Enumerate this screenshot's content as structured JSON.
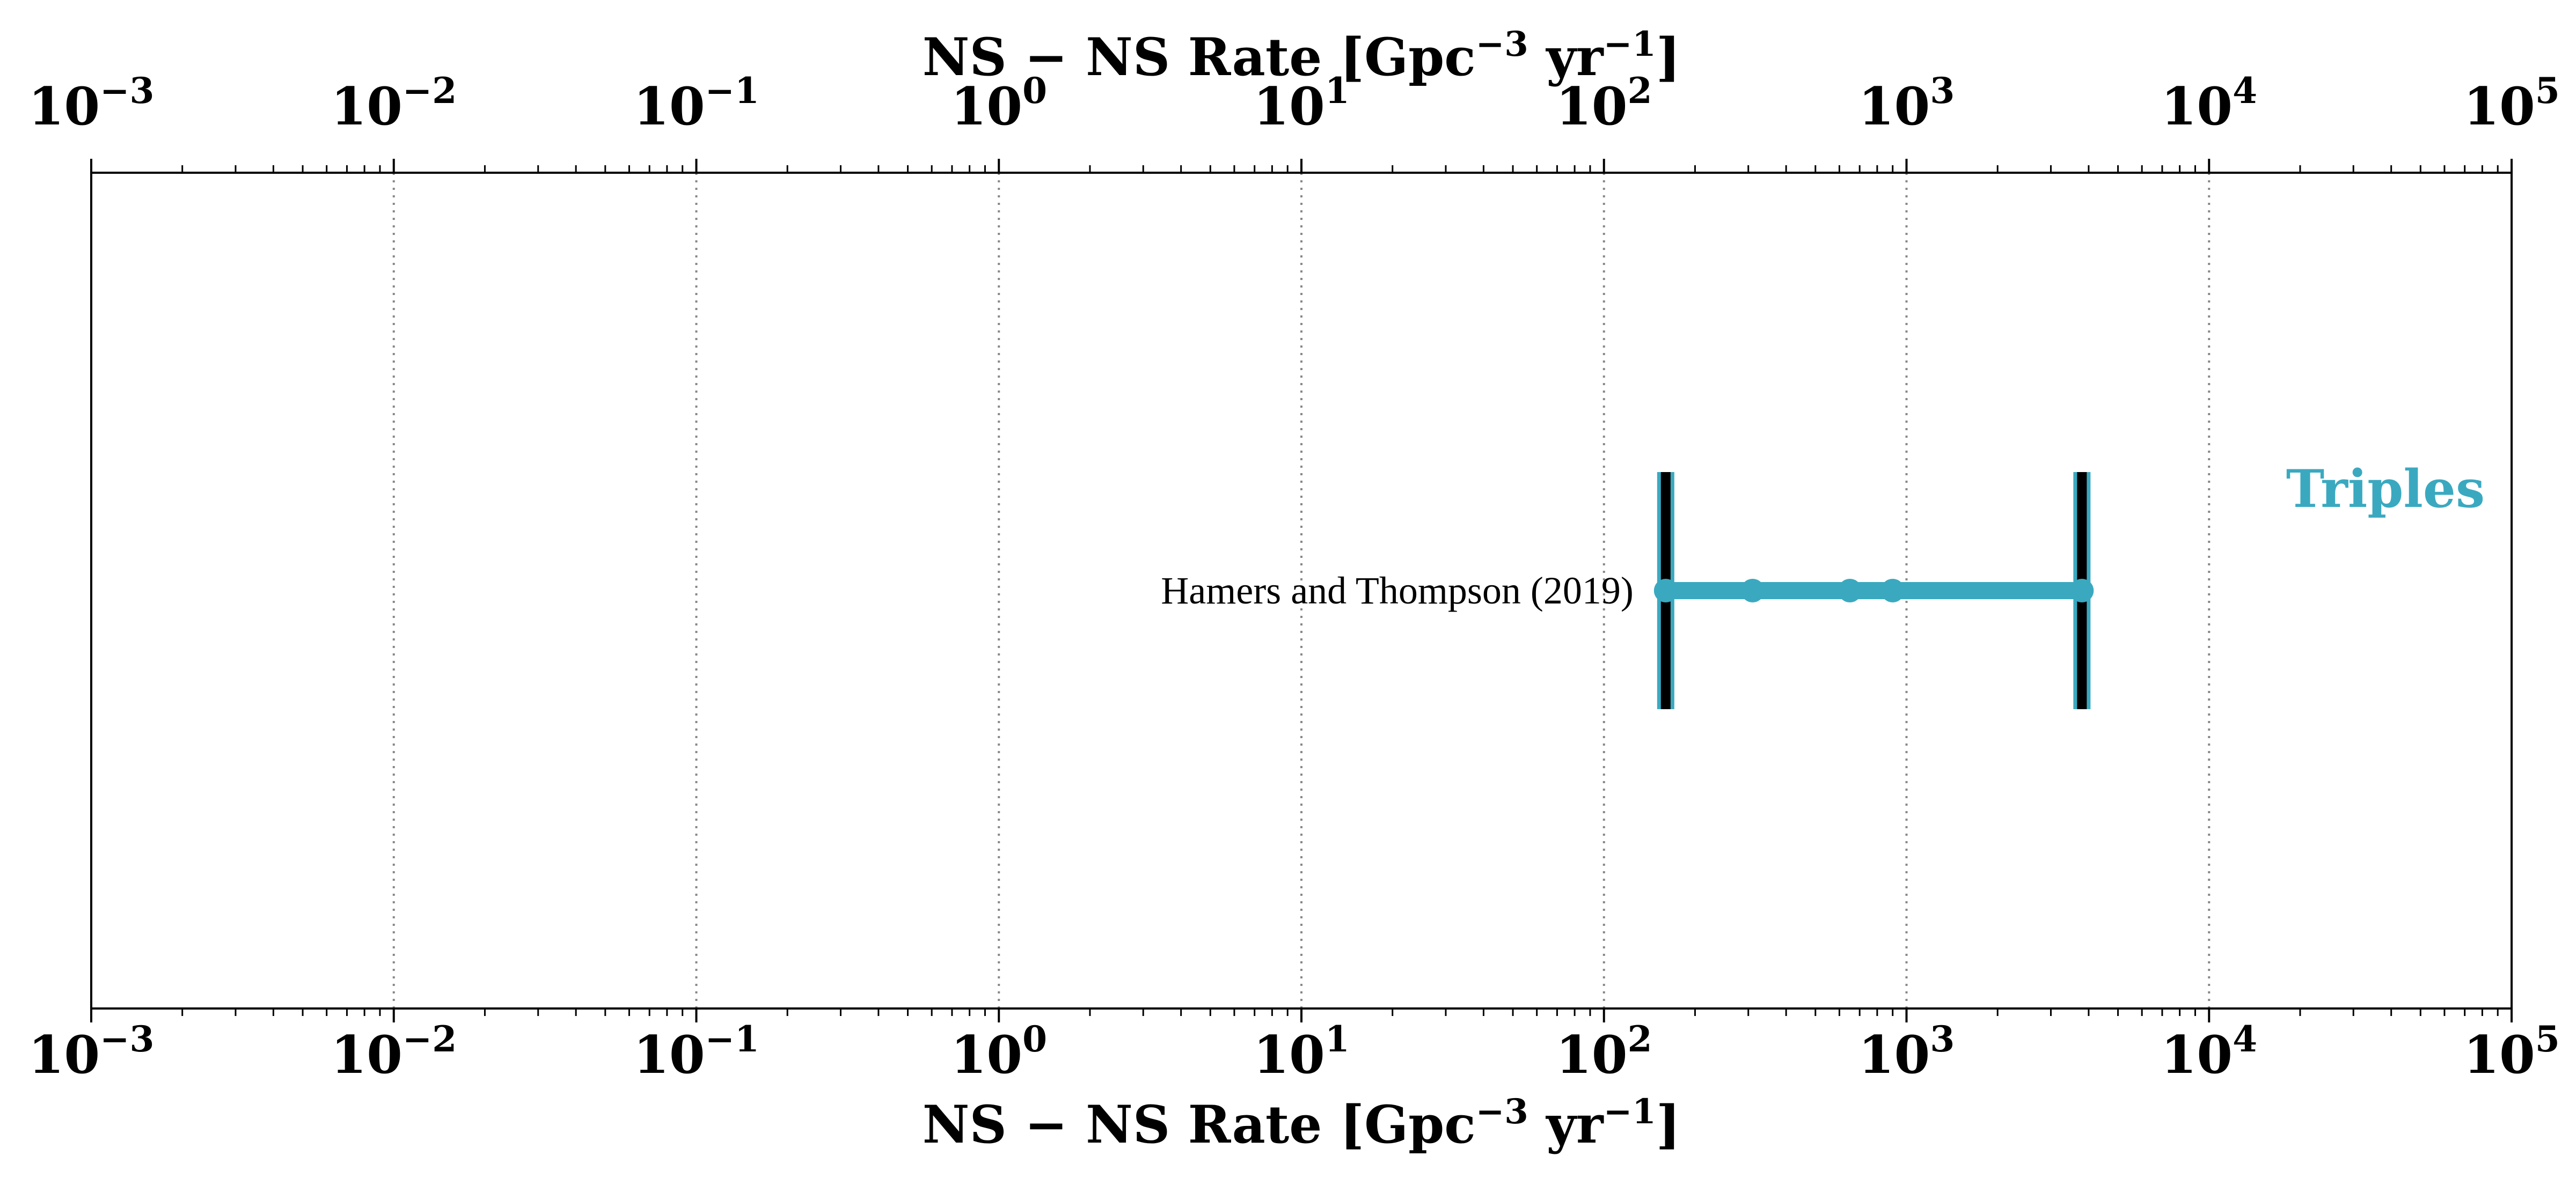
{
  "chart_data": {
    "type": "scatter",
    "xscale": "log",
    "xlim": [
      0.001,
      100000
    ],
    "grid": true,
    "xlabel": "NS − NS  Rate [Gpc⁻³ yr⁻¹]",
    "xlabel_parts": {
      "base": "NS − NS  Rate [Gpc",
      "exp1": "−3",
      "mid": " yr",
      "exp2": "−1",
      "end": "]"
    },
    "ticks": [
      {
        "value": 0.001,
        "base": "10",
        "exp": "−3"
      },
      {
        "value": 0.01,
        "base": "10",
        "exp": "−2"
      },
      {
        "value": 0.1,
        "base": "10",
        "exp": "−1"
      },
      {
        "value": 1,
        "base": "10",
        "exp": "0"
      },
      {
        "value": 10,
        "base": "10",
        "exp": "1"
      },
      {
        "value": 100,
        "base": "10",
        "exp": "2"
      },
      {
        "value": 1000,
        "base": "10",
        "exp": "3"
      },
      {
        "value": 10000,
        "base": "10",
        "exp": "4"
      },
      {
        "value": 100000,
        "base": "10",
        "exp": "5"
      }
    ],
    "category": {
      "label": "Triples",
      "color": "#3aa9c0"
    },
    "series": [
      {
        "study": "Hamers and Thompson (2019)",
        "color": "#3aa9c0",
        "range": [
          160,
          3800
        ],
        "points": [
          160,
          310,
          650,
          900,
          3800
        ]
      }
    ]
  }
}
